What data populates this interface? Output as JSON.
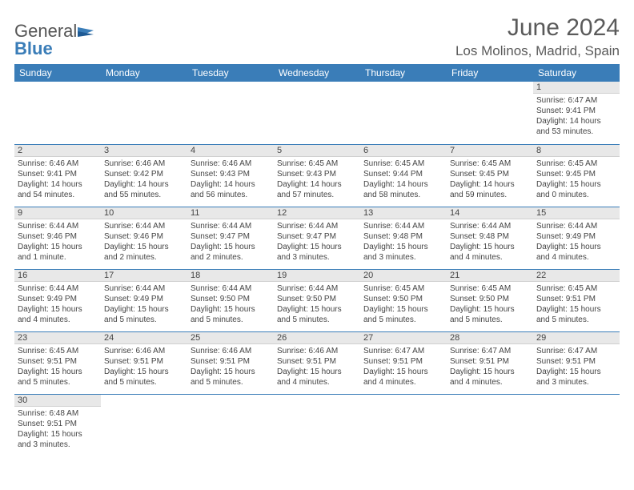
{
  "logo": {
    "general": "General",
    "blue": "Blue"
  },
  "title": "June 2024",
  "location": "Los Molinos, Madrid, Spain",
  "headers": [
    "Sunday",
    "Monday",
    "Tuesday",
    "Wednesday",
    "Thursday",
    "Friday",
    "Saturday"
  ],
  "colors": {
    "header_bg": "#3a7db8",
    "header_fg": "#ffffff",
    "daynum_bg": "#e8e8e8",
    "row_border": "#3a7db8",
    "text": "#444444"
  },
  "weeks": [
    [
      null,
      null,
      null,
      null,
      null,
      null,
      {
        "n": "1",
        "sr": "6:47 AM",
        "ss": "9:41 PM",
        "dl": "14 hours and 53 minutes."
      }
    ],
    [
      {
        "n": "2",
        "sr": "6:46 AM",
        "ss": "9:41 PM",
        "dl": "14 hours and 54 minutes."
      },
      {
        "n": "3",
        "sr": "6:46 AM",
        "ss": "9:42 PM",
        "dl": "14 hours and 55 minutes."
      },
      {
        "n": "4",
        "sr": "6:46 AM",
        "ss": "9:43 PM",
        "dl": "14 hours and 56 minutes."
      },
      {
        "n": "5",
        "sr": "6:45 AM",
        "ss": "9:43 PM",
        "dl": "14 hours and 57 minutes."
      },
      {
        "n": "6",
        "sr": "6:45 AM",
        "ss": "9:44 PM",
        "dl": "14 hours and 58 minutes."
      },
      {
        "n": "7",
        "sr": "6:45 AM",
        "ss": "9:45 PM",
        "dl": "14 hours and 59 minutes."
      },
      {
        "n": "8",
        "sr": "6:45 AM",
        "ss": "9:45 PM",
        "dl": "15 hours and 0 minutes."
      }
    ],
    [
      {
        "n": "9",
        "sr": "6:44 AM",
        "ss": "9:46 PM",
        "dl": "15 hours and 1 minute."
      },
      {
        "n": "10",
        "sr": "6:44 AM",
        "ss": "9:46 PM",
        "dl": "15 hours and 2 minutes."
      },
      {
        "n": "11",
        "sr": "6:44 AM",
        "ss": "9:47 PM",
        "dl": "15 hours and 2 minutes."
      },
      {
        "n": "12",
        "sr": "6:44 AM",
        "ss": "9:47 PM",
        "dl": "15 hours and 3 minutes."
      },
      {
        "n": "13",
        "sr": "6:44 AM",
        "ss": "9:48 PM",
        "dl": "15 hours and 3 minutes."
      },
      {
        "n": "14",
        "sr": "6:44 AM",
        "ss": "9:48 PM",
        "dl": "15 hours and 4 minutes."
      },
      {
        "n": "15",
        "sr": "6:44 AM",
        "ss": "9:49 PM",
        "dl": "15 hours and 4 minutes."
      }
    ],
    [
      {
        "n": "16",
        "sr": "6:44 AM",
        "ss": "9:49 PM",
        "dl": "15 hours and 4 minutes."
      },
      {
        "n": "17",
        "sr": "6:44 AM",
        "ss": "9:49 PM",
        "dl": "15 hours and 5 minutes."
      },
      {
        "n": "18",
        "sr": "6:44 AM",
        "ss": "9:50 PM",
        "dl": "15 hours and 5 minutes."
      },
      {
        "n": "19",
        "sr": "6:44 AM",
        "ss": "9:50 PM",
        "dl": "15 hours and 5 minutes."
      },
      {
        "n": "20",
        "sr": "6:45 AM",
        "ss": "9:50 PM",
        "dl": "15 hours and 5 minutes."
      },
      {
        "n": "21",
        "sr": "6:45 AM",
        "ss": "9:50 PM",
        "dl": "15 hours and 5 minutes."
      },
      {
        "n": "22",
        "sr": "6:45 AM",
        "ss": "9:51 PM",
        "dl": "15 hours and 5 minutes."
      }
    ],
    [
      {
        "n": "23",
        "sr": "6:45 AM",
        "ss": "9:51 PM",
        "dl": "15 hours and 5 minutes."
      },
      {
        "n": "24",
        "sr": "6:46 AM",
        "ss": "9:51 PM",
        "dl": "15 hours and 5 minutes."
      },
      {
        "n": "25",
        "sr": "6:46 AM",
        "ss": "9:51 PM",
        "dl": "15 hours and 5 minutes."
      },
      {
        "n": "26",
        "sr": "6:46 AM",
        "ss": "9:51 PM",
        "dl": "15 hours and 4 minutes."
      },
      {
        "n": "27",
        "sr": "6:47 AM",
        "ss": "9:51 PM",
        "dl": "15 hours and 4 minutes."
      },
      {
        "n": "28",
        "sr": "6:47 AM",
        "ss": "9:51 PM",
        "dl": "15 hours and 4 minutes."
      },
      {
        "n": "29",
        "sr": "6:47 AM",
        "ss": "9:51 PM",
        "dl": "15 hours and 3 minutes."
      }
    ],
    [
      {
        "n": "30",
        "sr": "6:48 AM",
        "ss": "9:51 PM",
        "dl": "15 hours and 3 minutes."
      },
      null,
      null,
      null,
      null,
      null,
      null
    ]
  ],
  "labels": {
    "sunrise": "Sunrise: ",
    "sunset": "Sunset: ",
    "daylight": "Daylight: "
  }
}
